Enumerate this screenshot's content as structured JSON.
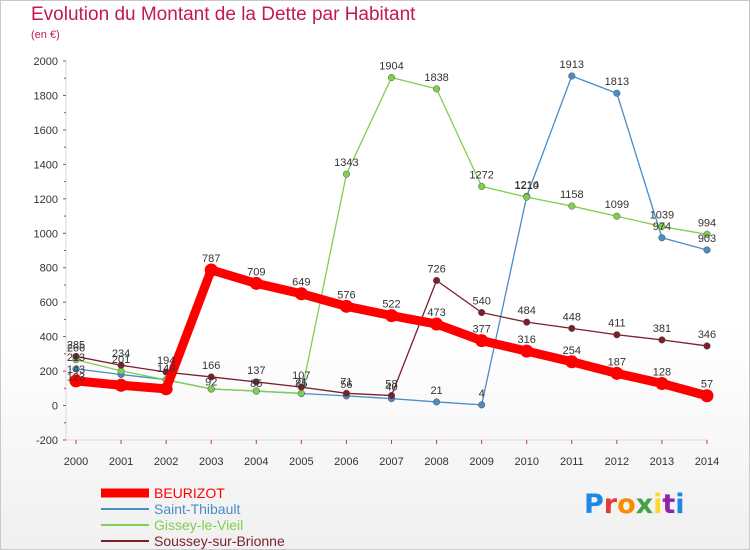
{
  "title": "Evolution du Montant de la Dette par Habitant",
  "subtitle": "(en €)",
  "logo": {
    "text": "Proxiti",
    "colors": [
      "#1e88e5",
      "#e53935",
      "#fb8c00",
      "#43a047",
      "#fdd835",
      "#8e24aa",
      "#1e88e5"
    ]
  },
  "chart_data": {
    "type": "line",
    "title": "Evolution du Montant de la Dette par Habitant",
    "ylabel": "(en €)",
    "x": [
      "2000",
      "2001",
      "2002",
      "2003",
      "2004",
      "2005",
      "2006",
      "2007",
      "2008",
      "2009",
      "2010",
      "2011",
      "2012",
      "2013",
      "2014"
    ],
    "ylim": [
      -200,
      2000
    ],
    "yticks": [
      -200,
      0,
      200,
      400,
      600,
      800,
      1000,
      1200,
      1400,
      1600,
      1800,
      2000
    ],
    "grid": false,
    "legend_position": "bottom-left",
    "series": [
      {
        "name": "BEURIZOT",
        "color": "#ff0000",
        "values": [
          143,
          118,
          97,
          787,
          709,
          649,
          576,
          522,
          473,
          377,
          316,
          254,
          187,
          128,
          57
        ],
        "labels": [
          "143",
          "",
          "",
          "787",
          "709",
          "649",
          "576",
          "522",
          "473",
          "377",
          "316",
          "254",
          "187",
          "128",
          "57"
        ]
      },
      {
        "name": "Saint-Thibault",
        "color": "#4a8cc4",
        "values": [
          213,
          180,
          150,
          96,
          84,
          70,
          56,
          40,
          21,
          4,
          1214,
          1913,
          1813,
          974,
          903
        ],
        "labels": [
          "213",
          "",
          "",
          "",
          "",
          "",
          "56",
          "40",
          "21",
          "4",
          "1214",
          "1913",
          "1813",
          "974",
          "903"
        ]
      },
      {
        "name": "Gissey-le-Vieil",
        "color": "#7fd04e",
        "values": [
          266,
          201,
          149,
          96,
          84,
          71,
          1343,
          1904,
          1838,
          1272,
          1210,
          1158,
          1099,
          1039,
          994
        ],
        "labels": [
          "266",
          "201",
          "149",
          "",
          "",
          "71",
          "1343",
          "1904",
          "1838",
          "1272",
          "1210",
          "1158",
          "1099",
          "1039",
          "994"
        ]
      },
      {
        "name": "Soussey-sur-Brionne",
        "color": "#7a1f2b",
        "values": [
          285,
          234,
          194,
          166,
          137,
          107,
          71,
          58,
          726,
          540,
          484,
          448,
          411,
          381,
          346
        ],
        "labels": [
          "285",
          "234",
          "194",
          "166",
          "137",
          "107",
          "71",
          "58",
          "726",
          "540",
          "484",
          "448",
          "411",
          "381",
          "346"
        ]
      }
    ],
    "extra_labels": [
      "92",
      "85",
      "85",
      "123"
    ]
  }
}
